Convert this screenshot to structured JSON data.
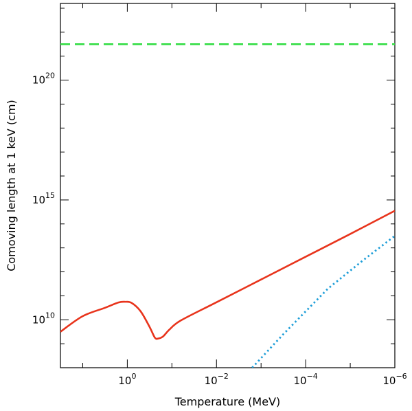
{
  "chart_data": {
    "type": "line",
    "title": "",
    "xlabel": "Temperature (MeV)",
    "ylabel": "Comoving length at 1 keV (cm)",
    "x_scale": "log",
    "y_scale": "log",
    "x_direction": "reversed",
    "xlim_log10": [
      1.5,
      -6
    ],
    "ylim_log10": [
      8,
      23.2
    ],
    "grid": false,
    "x_ticks": [
      {
        "base": "10",
        "exp": "0",
        "log10": 0
      },
      {
        "base": "10",
        "exp": "−2",
        "log10": -2
      },
      {
        "base": "10",
        "exp": "−4",
        "log10": -4
      },
      {
        "base": "10",
        "exp": "−6",
        "log10": -6
      }
    ],
    "y_ticks": [
      {
        "base": "10",
        "exp": "10",
        "log10": 10
      },
      {
        "base": "10",
        "exp": "15",
        "log10": 15
      },
      {
        "base": "10",
        "exp": "20",
        "log10": 20
      }
    ],
    "series": [
      {
        "name": "red-solid",
        "color": "#e8341c",
        "style": "solid",
        "points_log10": [
          [
            1.5,
            9.5
          ],
          [
            1.0,
            10.15
          ],
          [
            0.5,
            10.5
          ],
          [
            0.2,
            10.72
          ],
          [
            0.05,
            10.75
          ],
          [
            -0.1,
            10.7
          ],
          [
            -0.3,
            10.35
          ],
          [
            -0.5,
            9.7
          ],
          [
            -0.62,
            9.25
          ],
          [
            -0.7,
            9.22
          ],
          [
            -0.8,
            9.3
          ],
          [
            -0.95,
            9.6
          ],
          [
            -1.2,
            9.97
          ],
          [
            -2.0,
            10.73
          ],
          [
            -3.0,
            11.68
          ],
          [
            -4.0,
            12.63
          ],
          [
            -5.0,
            13.58
          ],
          [
            -6.0,
            14.55
          ]
        ]
      },
      {
        "name": "blue-dotted",
        "color": "#1e9ed8",
        "style": "dotted",
        "points_log10": [
          [
            -2.8,
            8.0
          ],
          [
            -3.5,
            9.4
          ],
          [
            -4.5,
            11.3
          ],
          [
            -5.3,
            12.5
          ],
          [
            -6.0,
            13.5
          ]
        ]
      },
      {
        "name": "green-dashed",
        "color": "#33dd44",
        "style": "dashed",
        "points_log10": [
          [
            1.5,
            21.5
          ],
          [
            -6.0,
            21.5
          ]
        ]
      }
    ]
  }
}
